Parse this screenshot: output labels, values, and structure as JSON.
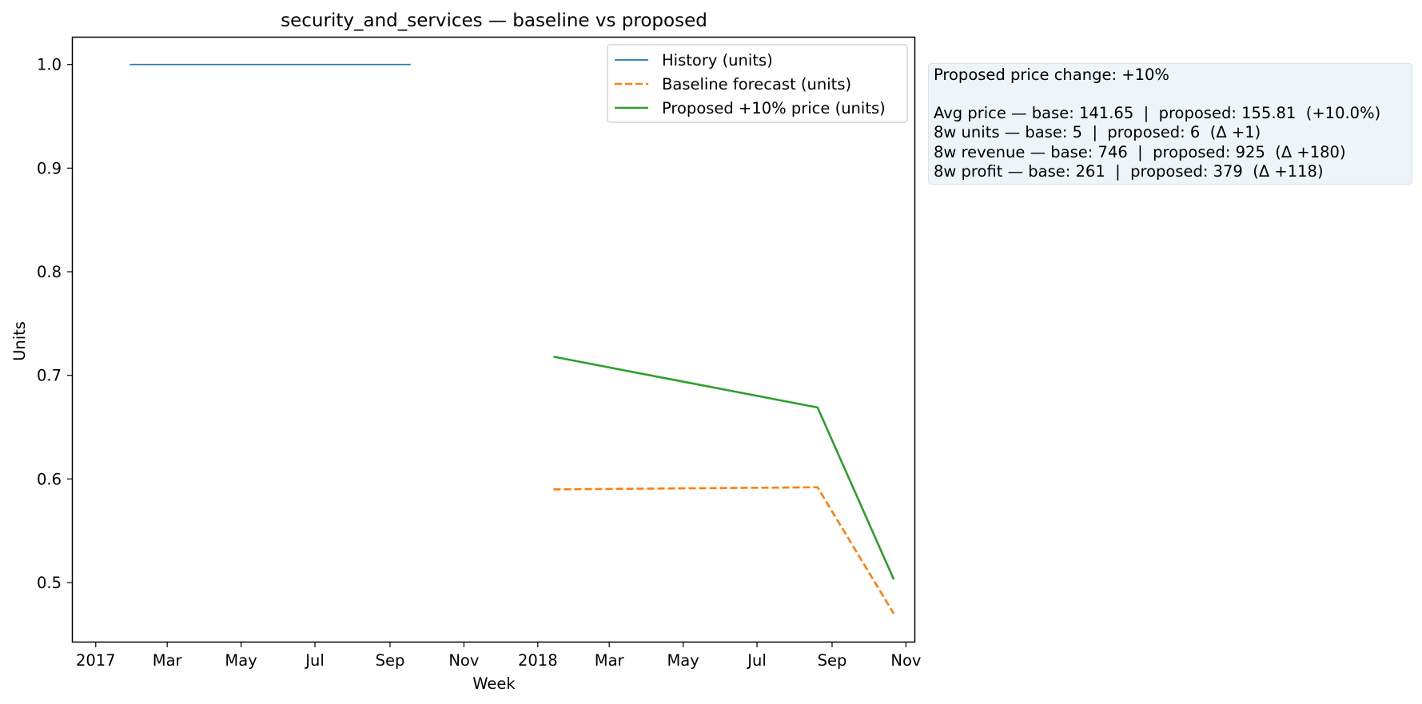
{
  "chart_data": {
    "type": "line",
    "title": "security_and_services — baseline vs proposed",
    "xlabel": "Week",
    "ylabel": "Units",
    "x_axis_type": "date",
    "xlim": [
      "2016-12-13",
      "2018-11-08"
    ],
    "ylim": [
      0.443,
      1.026
    ],
    "x_ticks": [
      {
        "date": "2017-01-01",
        "label": "2017"
      },
      {
        "date": "2017-03-01",
        "label": "Mar"
      },
      {
        "date": "2017-05-01",
        "label": "May"
      },
      {
        "date": "2017-07-01",
        "label": "Jul"
      },
      {
        "date": "2017-09-01",
        "label": "Sep"
      },
      {
        "date": "2017-11-01",
        "label": "Nov"
      },
      {
        "date": "2018-01-01",
        "label": "2018"
      },
      {
        "date": "2018-03-01",
        "label": "Mar"
      },
      {
        "date": "2018-05-01",
        "label": "May"
      },
      {
        "date": "2018-07-01",
        "label": "Jul"
      },
      {
        "date": "2018-09-01",
        "label": "Sep"
      },
      {
        "date": "2018-11-01",
        "label": "Nov"
      }
    ],
    "y_ticks": [
      0.5,
      0.6,
      0.7,
      0.8,
      0.9,
      1.0
    ],
    "grid": false,
    "legend_position": "top-right",
    "series": [
      {
        "name": "History (units)",
        "color": "#1f77b4",
        "style": "solid",
        "x": [
          "2017-01-29",
          "2017-09-18"
        ],
        "y": [
          1.0,
          1.0
        ]
      },
      {
        "name": "Baseline forecast (units)",
        "color": "#ff7f0e",
        "style": "dashed",
        "x": [
          "2018-01-14",
          "2018-08-20",
          "2018-10-22"
        ],
        "y": [
          0.59,
          0.592,
          0.47
        ]
      },
      {
        "name": "Proposed +10% price (units)",
        "color": "#2ca02c",
        "style": "solid",
        "x": [
          "2018-01-14",
          "2018-08-20",
          "2018-10-22"
        ],
        "y": [
          0.718,
          0.669,
          0.503
        ]
      }
    ]
  },
  "info_box": {
    "line1": "Proposed price change: +10%",
    "line2": "Avg price — base: 141.65  |  proposed: 155.81  (+10.0%)",
    "line3": "8w units — base: 5  |  proposed: 6  (Δ +1)",
    "line4": "8w revenue — base: 746  |  proposed: 925  (Δ +180)",
    "line5": "8w profit — base: 261  |  proposed: 379  (Δ +118)"
  }
}
